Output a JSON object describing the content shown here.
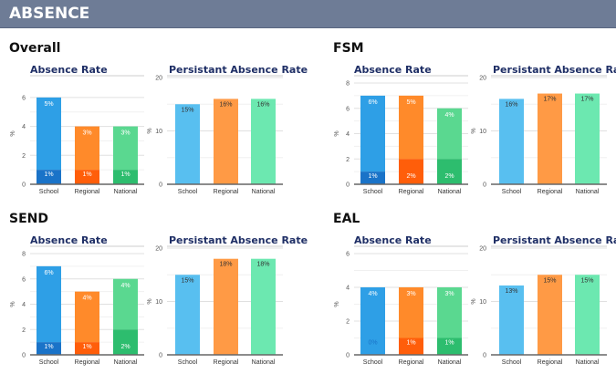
{
  "header": {
    "title": "ABSENCE"
  },
  "colors": {
    "school": "#2e9fe6",
    "school_dark": "#1a73c8",
    "regional": "#ff8a2a",
    "regional_dark": "#ff5e0a",
    "national": "#5ad890",
    "national_dark": "#2dbd6e",
    "school_pa": "#58bff0",
    "regional_pa": "#ff9a45",
    "national_pa": "#6ce8b0"
  },
  "chart_data": [
    {
      "section": "Overall",
      "type": "bar",
      "stacked": true,
      "title": "Absence Rate",
      "ylabel": "%",
      "ylim": [
        0,
        7
      ],
      "ticks": [
        0,
        2,
        4,
        6
      ],
      "categories": [
        "School",
        "Regional",
        "National"
      ],
      "lower": [
        1,
        1,
        1
      ],
      "upper": [
        5,
        3,
        3
      ],
      "lower_labels": [
        "1%",
        "1%",
        "1%"
      ],
      "upper_labels": [
        "5%",
        "3%",
        "3%"
      ]
    },
    {
      "section": "Overall",
      "type": "bar",
      "title": "Persistant Absence Rate",
      "ylabel": "%",
      "ylim": [
        0,
        20
      ],
      "ticks": [
        0,
        10,
        20
      ],
      "categories": [
        "School",
        "Regional",
        "National"
      ],
      "values": [
        15,
        16,
        16
      ],
      "labels": [
        "15%",
        "16%",
        "16%"
      ]
    },
    {
      "section": "FSM",
      "type": "bar",
      "stacked": true,
      "title": "Absence Rate",
      "ylabel": "%",
      "ylim": [
        0,
        8
      ],
      "ticks": [
        0,
        2,
        4,
        6,
        8
      ],
      "categories": [
        "School",
        "Regional",
        "National"
      ],
      "lower": [
        1,
        2,
        2
      ],
      "upper": [
        6,
        5,
        4
      ],
      "lower_labels": [
        "1%",
        "2%",
        "2%"
      ],
      "upper_labels": [
        "6%",
        "5%",
        "4%"
      ]
    },
    {
      "section": "FSM",
      "type": "bar",
      "title": "Persistant Absence Rate",
      "ylabel": "%",
      "ylim": [
        0,
        20
      ],
      "ticks": [
        0,
        10,
        20
      ],
      "categories": [
        "School",
        "Regional",
        "National"
      ],
      "values": [
        16,
        17,
        17
      ],
      "labels": [
        "16%",
        "17%",
        "17%"
      ]
    },
    {
      "section": "SEND",
      "type": "bar",
      "stacked": true,
      "title": "Absence Rate",
      "ylabel": "%",
      "ylim": [
        0,
        8
      ],
      "ticks": [
        0,
        2,
        4,
        6,
        8
      ],
      "categories": [
        "School",
        "Regional",
        "National"
      ],
      "lower": [
        1,
        1,
        2
      ],
      "upper": [
        6,
        4,
        4
      ],
      "lower_labels": [
        "1%",
        "1%",
        "2%"
      ],
      "upper_labels": [
        "6%",
        "4%",
        "4%"
      ]
    },
    {
      "section": "SEND",
      "type": "bar",
      "title": "Persistant Absence Rate",
      "ylabel": "%",
      "ylim": [
        0,
        20
      ],
      "ticks": [
        0,
        10,
        20
      ],
      "categories": [
        "School",
        "Regional",
        "National"
      ],
      "values": [
        15,
        18,
        18
      ],
      "labels": [
        "15%",
        "18%",
        "18%"
      ]
    },
    {
      "section": "EAL",
      "type": "bar",
      "stacked": true,
      "title": "Absence Rate",
      "ylabel": "%",
      "ylim": [
        0,
        6
      ],
      "ticks": [
        0,
        2,
        4,
        6
      ],
      "categories": [
        "School",
        "Regional",
        "National"
      ],
      "lower": [
        0,
        1,
        1
      ],
      "upper": [
        4,
        3,
        3
      ],
      "lower_labels": [
        "0%",
        "1%",
        "1%"
      ],
      "upper_labels": [
        "4%",
        "3%",
        "3%"
      ]
    },
    {
      "section": "EAL",
      "type": "bar",
      "title": "Persistant Absence Rate",
      "ylabel": "%",
      "ylim": [
        0,
        20
      ],
      "ticks": [
        0,
        10,
        20
      ],
      "categories": [
        "School",
        "Regional",
        "National"
      ],
      "values": [
        13,
        15,
        15
      ],
      "labels": [
        "13%",
        "15%",
        "15%"
      ]
    }
  ],
  "sections": [
    "Overall",
    "FSM",
    "SEND",
    "EAL"
  ]
}
